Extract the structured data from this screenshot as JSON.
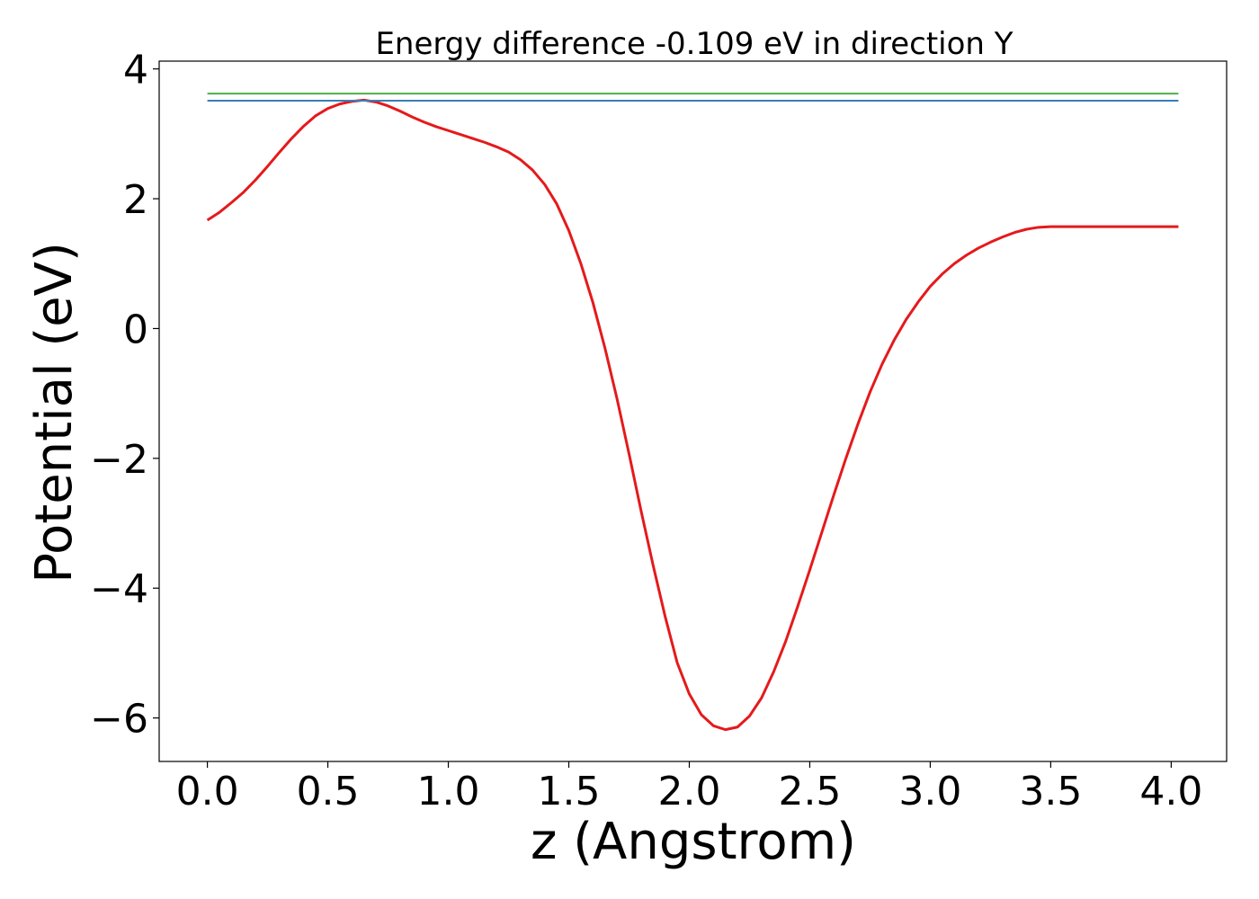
{
  "chart_data": {
    "type": "line",
    "title": "Energy difference -0.109 eV in direction Y",
    "xlabel": "z (Angstrom)",
    "ylabel": "Potential (eV)",
    "xlim": [
      -0.2,
      4.23
    ],
    "ylim": [
      -6.67,
      4.12
    ],
    "xticks": [
      0.0,
      0.5,
      1.0,
      1.5,
      2.0,
      2.5,
      3.0,
      3.5,
      4.0
    ],
    "xtick_labels": [
      "0.0",
      "0.5",
      "1.0",
      "1.5",
      "2.0",
      "2.5",
      "3.0",
      "3.5",
      "4.0"
    ],
    "yticks": [
      4,
      2,
      0,
      -2,
      -4,
      -6
    ],
    "ytick_labels": [
      "4",
      "2",
      "0",
      "−2",
      "−4",
      "−6"
    ],
    "grid": false,
    "series": [
      {
        "color": "#e41a1c",
        "x": [
          0.0,
          0.05,
          0.1,
          0.15,
          0.2,
          0.25,
          0.3,
          0.35,
          0.4,
          0.45,
          0.5,
          0.55,
          0.6,
          0.65,
          0.7,
          0.75,
          0.8,
          0.85,
          0.9,
          0.95,
          1.0,
          1.05,
          1.1,
          1.15,
          1.2,
          1.25,
          1.3,
          1.35,
          1.4,
          1.45,
          1.5,
          1.55,
          1.6,
          1.65,
          1.7,
          1.75,
          1.8,
          1.85,
          1.9,
          1.95,
          2.0,
          2.05,
          2.1,
          2.15,
          2.2,
          2.25,
          2.3,
          2.35,
          2.4,
          2.45,
          2.5,
          2.55,
          2.6,
          2.65,
          2.7,
          2.75,
          2.8,
          2.85,
          2.9,
          2.95,
          3.0,
          3.05,
          3.1,
          3.15,
          3.2,
          3.25,
          3.3,
          3.35,
          3.4,
          3.45,
          3.5,
          3.55,
          3.6,
          3.65,
          3.7,
          3.75,
          3.8,
          3.85,
          3.9,
          3.95,
          4.0,
          4.03
        ],
        "y": [
          1.67,
          1.79,
          1.94,
          2.1,
          2.29,
          2.5,
          2.72,
          2.93,
          3.12,
          3.28,
          3.39,
          3.46,
          3.5,
          3.52,
          3.49,
          3.43,
          3.35,
          3.26,
          3.18,
          3.11,
          3.05,
          2.99,
          2.93,
          2.87,
          2.8,
          2.72,
          2.6,
          2.44,
          2.22,
          1.92,
          1.51,
          1.0,
          0.4,
          -0.3,
          -1.08,
          -1.93,
          -2.81,
          -3.65,
          -4.44,
          -5.15,
          -5.63,
          -5.95,
          -6.12,
          -6.18,
          -6.14,
          -5.97,
          -5.69,
          -5.29,
          -4.82,
          -4.28,
          -3.72,
          -3.14,
          -2.56,
          -2.0,
          -1.47,
          -0.98,
          -0.55,
          -0.18,
          0.14,
          0.41,
          0.65,
          0.84,
          1.0,
          1.13,
          1.24,
          1.33,
          1.41,
          1.48,
          1.53,
          1.56,
          1.57,
          1.57,
          1.57,
          1.57,
          1.57,
          1.57,
          1.57,
          1.57,
          1.57,
          1.57,
          1.57,
          1.57
        ]
      },
      {
        "color": "#4daf4a",
        "x": [
          0.0,
          4.03
        ],
        "y": [
          3.62,
          3.62
        ]
      },
      {
        "color": "#377eb8",
        "x": [
          0.0,
          4.03
        ],
        "y": [
          3.51,
          3.51
        ]
      }
    ]
  }
}
